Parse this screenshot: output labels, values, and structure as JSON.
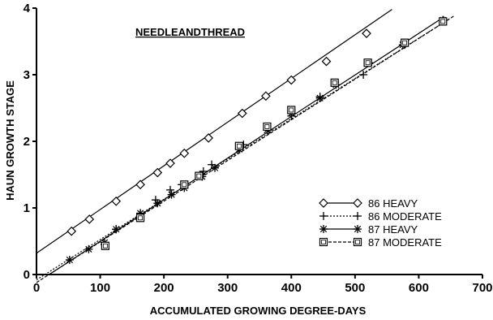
{
  "chart_data": {
    "type": "scatter",
    "title": "NEEDLEANDTHREAD",
    "xlabel": "ACCUMULATED GROWING DEGREE-DAYS",
    "ylabel": "HAUN GROWTH STAGE",
    "xlim": [
      0,
      700
    ],
    "ylim": [
      0,
      4
    ],
    "xticks": [
      "0",
      "100",
      "200",
      "300",
      "400",
      "500",
      "600",
      "700"
    ],
    "yticks": [
      "0",
      "1",
      "2",
      "3",
      "4"
    ],
    "grid": false,
    "legend_position": "right",
    "series": [
      {
        "name": "86 HEAVY",
        "marker": "diamond",
        "line_style": "solid",
        "x": [
          55,
          83,
          125,
          163,
          190,
          210,
          232,
          270,
          323,
          360,
          400,
          455,
          518
        ],
        "y": [
          0.65,
          0.83,
          1.1,
          1.35,
          1.53,
          1.67,
          1.82,
          2.05,
          2.42,
          2.68,
          2.92,
          3.2,
          3.62
        ],
        "fit": {
          "x": [
            0,
            558
          ],
          "y": [
            0.32,
            3.98
          ]
        }
      },
      {
        "name": "86 MODERATE",
        "marker": "plus",
        "line_style": "dotted",
        "x": [
          107,
          125,
          163,
          187,
          210,
          228,
          262,
          275,
          325,
          365,
          400,
          445,
          513,
          578,
          638
        ],
        "y": [
          0.45,
          0.68,
          0.92,
          1.12,
          1.27,
          1.35,
          1.55,
          1.65,
          1.95,
          2.17,
          2.38,
          2.67,
          3.0,
          3.45,
          3.82
        ],
        "fit": {
          "x": [
            0,
            650
          ],
          "y": [
            -0.08,
            3.85
          ]
        }
      },
      {
        "name": "87 HEAVY",
        "marker": "asterisk",
        "line_style": "solid",
        "x": [
          52,
          82,
          107,
          125,
          163,
          190,
          212,
          232,
          260,
          280,
          318,
          362,
          400,
          445,
          470,
          522,
          575,
          638
        ],
        "y": [
          0.22,
          0.38,
          0.48,
          0.68,
          0.92,
          1.07,
          1.2,
          1.3,
          1.47,
          1.6,
          1.88,
          2.17,
          2.42,
          2.65,
          2.85,
          3.18,
          3.45,
          3.82
        ],
        "fit": {
          "x": [
            20,
            640
          ],
          "y": [
            0,
            3.87
          ]
        }
      },
      {
        "name": "87 MODERATE",
        "marker": "square",
        "line_style": "dashed",
        "x": [
          108,
          163,
          232,
          255,
          318,
          362,
          400,
          468,
          520,
          578,
          638
        ],
        "y": [
          0.43,
          0.85,
          1.35,
          1.48,
          1.93,
          2.22,
          2.47,
          2.88,
          3.18,
          3.48,
          3.8
        ],
        "fit": {
          "x": [
            0,
            655
          ],
          "y": [
            -0.12,
            3.88
          ]
        }
      }
    ]
  }
}
